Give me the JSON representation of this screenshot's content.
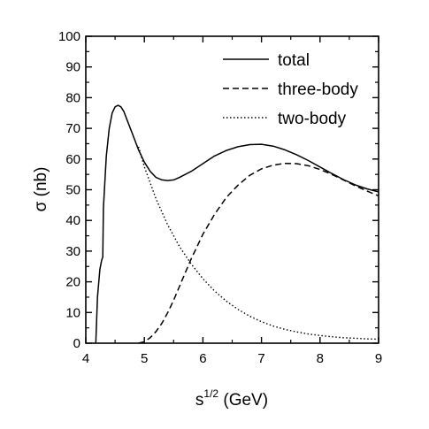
{
  "chart_data": {
    "type": "line",
    "title": "",
    "xlabel": "s^{1/2} (GeV)",
    "xlabel_base": "s",
    "xlabel_sup": "1/2",
    "xlabel_unit": " (GeV)",
    "ylabel": "σ (nb)",
    "xlim": [
      4,
      9
    ],
    "ylim": [
      0,
      100
    ],
    "xticks": [
      4,
      5,
      6,
      7,
      8,
      9
    ],
    "yticks": [
      0,
      10,
      20,
      30,
      40,
      50,
      60,
      70,
      80,
      90,
      100
    ],
    "grid": false,
    "legend": "top-right",
    "series": [
      {
        "name": "total",
        "style": "solid",
        "x": [
          4.17,
          4.2,
          4.24,
          4.27,
          4.29,
          4.3,
          4.35,
          4.4,
          4.45,
          4.5,
          4.55,
          4.6,
          4.65,
          4.7,
          4.8,
          4.9,
          5.0,
          5.1,
          5.2,
          5.3,
          5.4,
          5.5,
          5.6,
          5.8,
          6.0,
          6.2,
          6.4,
          6.6,
          6.8,
          7.0,
          7.2,
          7.4,
          7.6,
          7.8,
          8.0,
          8.2,
          8.4,
          8.6,
          8.8,
          9.0
        ],
        "y": [
          0,
          15,
          24,
          27,
          28,
          44,
          61,
          70,
          75,
          77,
          77.5,
          77,
          75.5,
          73,
          68,
          63,
          59,
          56,
          54,
          53.2,
          53,
          53.2,
          54,
          56,
          58.5,
          61,
          62.8,
          64,
          64.7,
          64.8,
          64.2,
          63,
          61.4,
          59.5,
          57.4,
          55.3,
          53.3,
          51.6,
          50.3,
          49.3
        ]
      },
      {
        "name": "three-body",
        "style": "dashed",
        "x": [
          4.9,
          5.0,
          5.1,
          5.2,
          5.3,
          5.4,
          5.5,
          5.6,
          5.7,
          5.8,
          5.9,
          6.0,
          6.2,
          6.4,
          6.6,
          6.8,
          7.0,
          7.2,
          7.4,
          7.6,
          7.8,
          8.0,
          8.2,
          8.4,
          8.6,
          8.8,
          9.0
        ],
        "y": [
          0,
          0.5,
          1.8,
          3.8,
          6.5,
          10,
          14,
          18.5,
          23,
          27.5,
          31.5,
          35.5,
          42,
          47.5,
          51.5,
          54.7,
          56.8,
          58,
          58.6,
          58.5,
          57.8,
          56.6,
          55,
          53.2,
          51.3,
          49.6,
          48
        ]
      },
      {
        "name": "two-body",
        "style": "dotted",
        "x": [
          4.9,
          5.0,
          5.2,
          5.4,
          5.6,
          5.8,
          6.0,
          6.2,
          6.4,
          6.6,
          6.8,
          7.0,
          7.2,
          7.4,
          7.6,
          7.8,
          8.0,
          8.2,
          8.4,
          8.6,
          8.8,
          9.0
        ],
        "y": [
          64,
          57.5,
          47,
          38.5,
          31.5,
          25.8,
          21,
          17,
          13.7,
          11,
          8.8,
          7,
          5.6,
          4.5,
          3.7,
          3,
          2.5,
          2.1,
          1.8,
          1.6,
          1.4,
          1.3
        ]
      }
    ]
  },
  "colors": {
    "line": "#000000",
    "background": "#ffffff"
  }
}
